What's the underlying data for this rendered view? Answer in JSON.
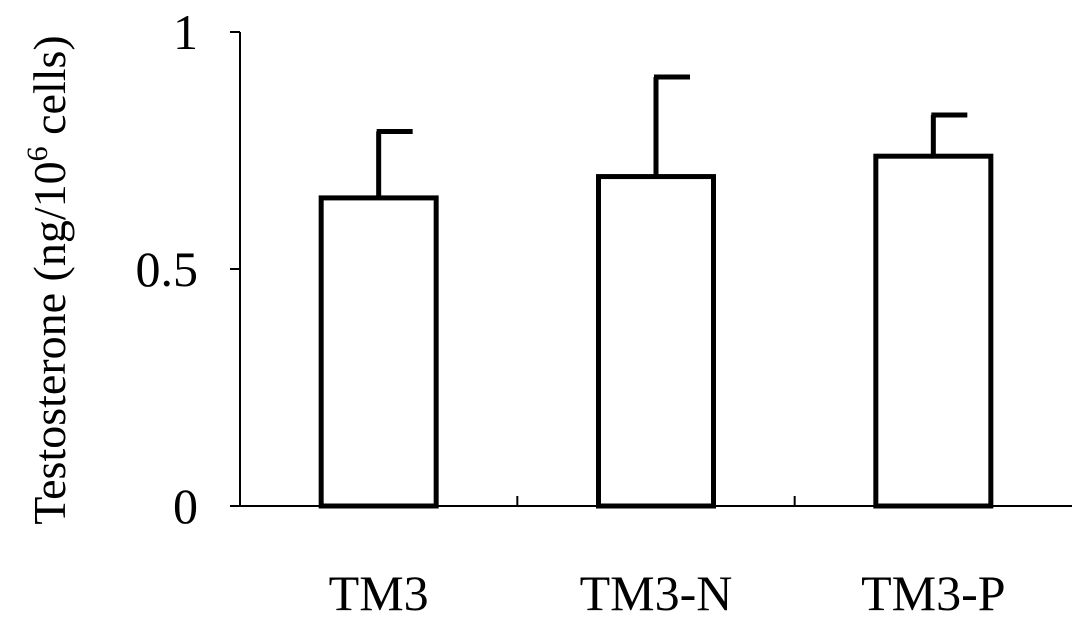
{
  "chart_data": {
    "type": "bar",
    "title": "",
    "xlabel": "",
    "ylabel": {
      "prefix": "Testosterone (ng/10",
      "superscript": "6",
      "suffix": " cells)"
    },
    "categories": [
      "TM3",
      "TM3-N",
      "TM3-P"
    ],
    "values": [
      0.65,
      0.695,
      0.738
    ],
    "error_upper": [
      0.79,
      0.905,
      0.825
    ],
    "ylim": [
      0,
      1
    ],
    "yticks": [
      0,
      0.5,
      1
    ],
    "ytick_labels": [
      "0",
      "0.5",
      "1"
    ],
    "grid": false,
    "legend": "none",
    "bar_fill": "#ffffff",
    "bar_stroke": "#000000"
  }
}
